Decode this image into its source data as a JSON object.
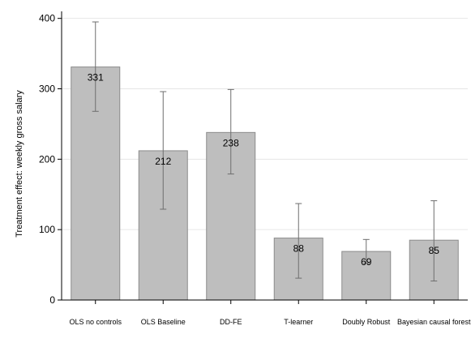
{
  "chart_data": {
    "type": "bar",
    "title": "",
    "xlabel": "",
    "ylabel": "Treatment effect: weekly gross salary",
    "ylim": [
      0,
      410
    ],
    "yticks": [
      0,
      100,
      200,
      300,
      400
    ],
    "grid": true,
    "categories": [
      "OLS no controls",
      "OLS Baseline",
      "DD-FE",
      "T-learner",
      "Doubly Robust",
      "Bayesian causal forest"
    ],
    "values": [
      331,
      212,
      238,
      88,
      69,
      85
    ],
    "labels": [
      "331",
      "212",
      "238",
      "88",
      "69",
      "85"
    ],
    "error_low": [
      268,
      129,
      179,
      31,
      52,
      27
    ],
    "error_high": [
      395,
      296,
      299,
      137,
      86,
      141
    ],
    "colors": {
      "bar_fill": "#bebebe",
      "bar_edge": "#8c8c8c",
      "error_bar": "#6e6e6e",
      "grid": "#e6e6e6",
      "axis": "#000000"
    }
  }
}
